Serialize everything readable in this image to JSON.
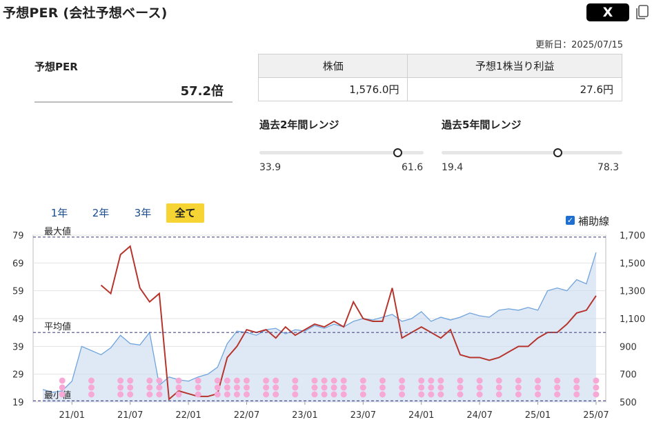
{
  "page": {
    "title": "予想PER (会社予想ベース)",
    "x_button_label": "X",
    "copy_icon": "copy-icon",
    "updated": "更新日：2025/07/15"
  },
  "per": {
    "label": "予想PER",
    "value": "57.2倍"
  },
  "price_table": {
    "headers": [
      "株価",
      "予想1株当り利益"
    ],
    "values": [
      "1,576.0円",
      "27.6円"
    ]
  },
  "ranges": [
    {
      "title": "過去2年間レンジ",
      "min": "33.9",
      "max": "61.6",
      "min_value": 33.9,
      "max_value": 61.6,
      "current": 57.2
    },
    {
      "title": "過去5年間レンジ",
      "min": "19.4",
      "max": "78.3",
      "min_value": 19.4,
      "max_value": 78.3,
      "current": 57.2
    }
  ],
  "tabs": [
    {
      "label": "1年",
      "active": false
    },
    {
      "label": "2年",
      "active": false
    },
    {
      "label": "3年",
      "active": false
    },
    {
      "label": "全て",
      "active": true
    }
  ],
  "helper_lines": {
    "label": "補助線",
    "checked": true
  },
  "colors": {
    "per_line": "#b5342c",
    "price_line": "#6ea3dc",
    "price_fill": "#c9daf0",
    "ref_line": "#4a4a8a",
    "marker": "#f7a9d6",
    "tab_active": "#f5d434"
  },
  "chart_data": {
    "type": "line",
    "x_tick_labels": [
      "21/01",
      "21/07",
      "22/01",
      "22/07",
      "23/01",
      "23/07",
      "24/01",
      "24/07",
      "25/01",
      "25/07"
    ],
    "y_left": {
      "ticks": [
        19,
        29,
        39,
        49,
        59,
        69,
        79
      ],
      "range": [
        19,
        79
      ]
    },
    "y_right": {
      "ticks": [
        "500",
        "700",
        "900",
        "1,100",
        "1,300",
        "1,500",
        "1,700"
      ],
      "range": [
        500,
        1700
      ]
    },
    "reference_lines": [
      {
        "label": "最大値",
        "value": 78.3
      },
      {
        "label": "平均値",
        "value": 44.0
      },
      {
        "label": "最小値",
        "value": 19.4
      }
    ],
    "series": [
      {
        "axis": "left",
        "x": [
          "2021/04",
          "2021/05",
          "2021/06",
          "2021/07",
          "2021/08",
          "2021/09",
          "2021/10",
          "2021/11",
          "2021/12",
          "2022/01",
          "2022/02",
          "2022/03",
          "2022/04",
          "2022/05",
          "2022/06",
          "2022/07",
          "2022/08",
          "2022/09",
          "2022/10",
          "2022/11",
          "2022/12",
          "2023/01",
          "2023/02",
          "2023/03",
          "2023/04",
          "2023/05",
          "2023/06",
          "2023/07",
          "2023/08",
          "2023/09",
          "2023/10",
          "2023/11",
          "2023/12",
          "2024/01",
          "2024/02",
          "2024/03",
          "2024/04",
          "2024/05",
          "2024/06",
          "2024/07",
          "2024/08",
          "2024/09",
          "2024/10",
          "2024/11",
          "2024/12",
          "2025/01",
          "2025/02",
          "2025/03",
          "2025/04",
          "2025/05",
          "2025/06",
          "2025/07"
        ],
        "values": [
          61,
          58,
          72,
          75,
          60,
          55,
          58,
          20,
          23,
          22,
          21,
          21,
          22,
          35,
          39,
          45,
          44,
          45,
          42,
          46,
          43,
          45,
          47,
          46,
          48,
          46,
          55,
          49,
          48,
          48,
          60,
          42,
          44,
          46,
          44,
          42,
          45,
          36,
          35,
          35,
          34,
          35,
          37,
          39,
          39,
          42,
          44,
          44,
          47,
          51,
          52,
          57.2
        ]
      },
      {
        "axis": "right",
        "x": [
          "2020/10",
          "2020/11",
          "2020/12",
          "2021/01",
          "2021/02",
          "2021/03",
          "2021/04",
          "2021/05",
          "2021/06",
          "2021/07",
          "2021/08",
          "2021/09",
          "2021/10",
          "2021/11",
          "2021/12",
          "2022/01",
          "2022/02",
          "2022/03",
          "2022/04",
          "2022/05",
          "2022/06",
          "2022/07",
          "2022/08",
          "2022/09",
          "2022/10",
          "2022/11",
          "2022/12",
          "2023/01",
          "2023/02",
          "2023/03",
          "2023/04",
          "2023/05",
          "2023/06",
          "2023/07",
          "2023/08",
          "2023/09",
          "2023/10",
          "2023/11",
          "2023/12",
          "2024/01",
          "2024/02",
          "2024/03",
          "2024/04",
          "2024/05",
          "2024/06",
          "2024/07",
          "2024/08",
          "2024/09",
          "2024/10",
          "2024/11",
          "2024/12",
          "2025/01",
          "2025/02",
          "2025/03",
          "2025/04",
          "2025/05",
          "2025/06",
          "2025/07"
        ],
        "values": [
          590,
          570,
          580,
          650,
          900,
          870,
          840,
          890,
          980,
          920,
          910,
          1000,
          620,
          680,
          660,
          650,
          680,
          700,
          750,
          920,
          1010,
          1000,
          980,
          1020,
          1030,
          990,
          1020,
          1010,
          1050,
          1030,
          1060,
          1040,
          1080,
          1100,
          1090,
          1110,
          1130,
          1080,
          1100,
          1150,
          1080,
          1110,
          1090,
          1110,
          1140,
          1120,
          1110,
          1160,
          1170,
          1160,
          1180,
          1160,
          1300,
          1320,
          1300,
          1380,
          1350,
          1576
        ]
      }
    ],
    "marker_months": [
      "2020/12",
      "2021/03",
      "2021/06",
      "2021/07",
      "2021/09",
      "2021/10",
      "2021/12",
      "2022/02",
      "2022/04",
      "2022/05",
      "2022/06",
      "2022/07",
      "2022/09",
      "2022/10",
      "2022/12",
      "2023/02",
      "2023/03",
      "2023/04",
      "2023/05",
      "2023/07",
      "2023/09",
      "2023/11",
      "2024/01",
      "2024/02",
      "2024/03",
      "2024/05",
      "2024/07",
      "2024/09",
      "2024/11",
      "2025/01",
      "2025/03",
      "2025/05",
      "2025/07"
    ]
  }
}
